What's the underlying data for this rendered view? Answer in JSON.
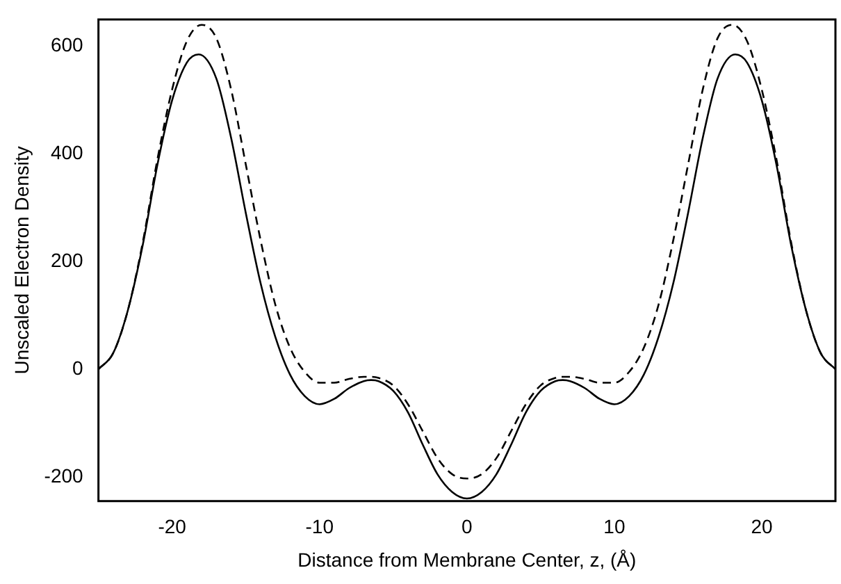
{
  "chart_data": {
    "type": "line",
    "xlabel": "Distance from Membrane Center, z, (Å)",
    "ylabel": "Unscaled Electron Density",
    "xlim": [
      -25,
      25
    ],
    "xticks": [
      -20,
      -10,
      0,
      10,
      20
    ],
    "ylim": [
      -245,
      650
    ],
    "yticks": [
      -200,
      0,
      200,
      400,
      600
    ],
    "marker": "none",
    "legend": false,
    "series": [
      {
        "color": "#000000",
        "line_style": "solid",
        "x": [
          -25,
          -24,
          -23,
          -22,
          -21,
          -20,
          -19,
          -18.2,
          -17,
          -16,
          -15,
          -14,
          -13,
          -12,
          -11,
          -10,
          -9,
          -8,
          -7,
          -6.5,
          -6,
          -5,
          -4,
          -3,
          -2,
          -1,
          0,
          1,
          2,
          3,
          4,
          5,
          6,
          6.5,
          7,
          8,
          9,
          10,
          11,
          12,
          13,
          14,
          15,
          16,
          17,
          18.2,
          19,
          20,
          21,
          22,
          23,
          24,
          25
        ],
        "values": [
          0,
          30,
          110,
          230,
          380,
          500,
          570,
          585,
          540,
          430,
          290,
          160,
          60,
          -10,
          -50,
          -65,
          -55,
          -35,
          -22,
          -20,
          -22,
          -40,
          -80,
          -140,
          -195,
          -228,
          -240,
          -228,
          -195,
          -140,
          -80,
          -40,
          -22,
          -20,
          -22,
          -35,
          -55,
          -65,
          -50,
          -10,
          60,
          160,
          290,
          430,
          540,
          585,
          570,
          500,
          380,
          230,
          110,
          30,
          0
        ]
      },
      {
        "color": "#000000",
        "line_style": "dashed",
        "x": [
          -25,
          -24,
          -23,
          -22,
          -21,
          -20,
          -19,
          -18,
          -17,
          -16,
          -15,
          -14,
          -13,
          -12,
          -11,
          -10,
          -9,
          -8,
          -7,
          -6.5,
          -6,
          -5,
          -4,
          -3,
          -2,
          -1,
          0,
          1,
          2,
          3,
          4,
          5,
          6,
          6.5,
          7,
          8,
          9,
          10,
          11,
          12,
          13,
          14,
          15,
          16,
          17,
          18,
          19,
          20,
          21,
          22,
          23,
          24,
          25
        ],
        "values": [
          0,
          30,
          110,
          235,
          390,
          520,
          610,
          640,
          615,
          520,
          380,
          240,
          120,
          40,
          -5,
          -25,
          -25,
          -18,
          -14,
          -14,
          -16,
          -30,
          -65,
          -115,
          -165,
          -195,
          -203,
          -195,
          -165,
          -115,
          -65,
          -30,
          -16,
          -14,
          -14,
          -18,
          -25,
          -25,
          -5,
          40,
          120,
          240,
          380,
          520,
          615,
          640,
          610,
          520,
          390,
          235,
          110,
          30,
          0
        ]
      }
    ]
  }
}
